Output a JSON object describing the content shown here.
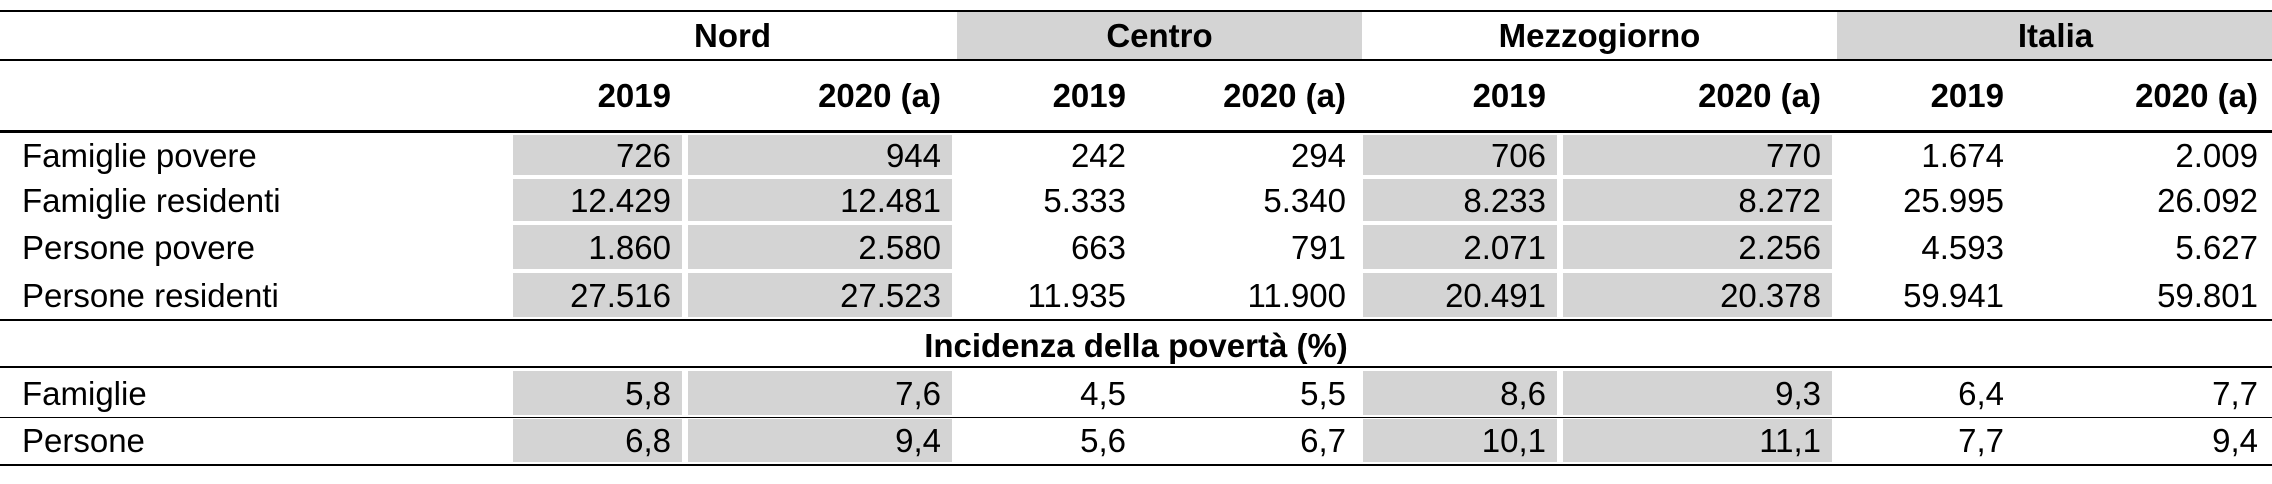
{
  "regions": [
    "Nord",
    "Centro",
    "Mezzogiorno",
    "Italia"
  ],
  "years": [
    "2019",
    "2020 (a)"
  ],
  "rows": [
    {
      "label": "Famiglie povere",
      "values": [
        "726",
        "944",
        "242",
        "294",
        "706",
        "770",
        "1.674",
        "2.009"
      ]
    },
    {
      "label": "Famiglie residenti",
      "values": [
        "12.429",
        "12.481",
        "5.333",
        "5.340",
        "8.233",
        "8.272",
        "25.995",
        "26.092"
      ]
    },
    {
      "label": "Persone povere",
      "values": [
        "1.860",
        "2.580",
        "663",
        "791",
        "2.071",
        "2.256",
        "4.593",
        "5.627"
      ]
    },
    {
      "label": "Persone residenti",
      "values": [
        "27.516",
        "27.523",
        "11.935",
        "11.900",
        "20.491",
        "20.378",
        "59.941",
        "59.801"
      ]
    }
  ],
  "section_title": "Incidenza della povertà (%)",
  "incidence_rows": [
    {
      "label": "Famiglie",
      "values": [
        "5,8",
        "7,6",
        "4,5",
        "5,5",
        "8,6",
        "9,3",
        "6,4",
        "7,7"
      ]
    },
    {
      "label": "Persone",
      "values": [
        "6,8",
        "9,4",
        "5,6",
        "6,7",
        "10,1",
        "11,1",
        "7,7",
        "9,4"
      ]
    }
  ]
}
